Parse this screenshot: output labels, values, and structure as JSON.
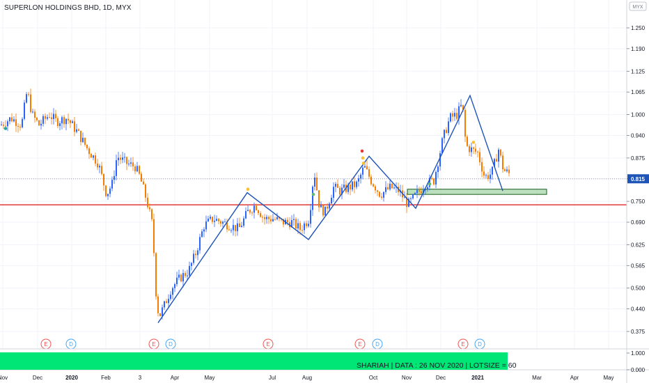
{
  "header": {
    "title": "SUPERLON HOLDINGS BHD, 1D, MYX"
  },
  "currency_label": "MYX",
  "price_badge": "0.815",
  "banner": {
    "text": "SHARIAH   |   DATA : 26 NOV 2020   |   LOTSIZE = 60"
  },
  "colors": {
    "up": "#2962ff",
    "down": "#f57c00",
    "support_line": "#e53935",
    "pattern_line": "#1e53b8",
    "zone_fill": "#a5d6a7",
    "banner": "#00e676",
    "earnings": "#ef5350",
    "dividend": "#42a5f5"
  },
  "chart_data": {
    "type": "candlestick",
    "title": "SUPERLON HOLDINGS BHD, 1D, MYX",
    "ylim": [
      0.35,
      1.3
    ],
    "y_ticks": [
      "1.250",
      "1.190",
      "1.125",
      "1.065",
      "1.000",
      "0.940",
      "0.875",
      "0.815",
      "0.750",
      "0.690",
      "0.625",
      "0.565",
      "0.500",
      "0.440",
      "0.375"
    ],
    "x_ticks": [
      "Nov",
      "Dec",
      "2020",
      "Feb",
      "3",
      "Apr",
      "May",
      "Jul",
      "Aug",
      "Oct",
      "Nov",
      "Dec",
      "2021",
      "Mar",
      "Apr",
      "May"
    ],
    "last_price": 0.815,
    "support_level": 0.74,
    "zone": {
      "low": 0.77,
      "high": 0.785,
      "from": "Nov",
      "to": "Mar"
    },
    "events": [
      {
        "type": "E",
        "label": "E",
        "x": "Dec"
      },
      {
        "type": "D",
        "label": "D",
        "x": "Dec"
      },
      {
        "type": "E",
        "label": "E",
        "x": "3"
      },
      {
        "type": "D",
        "label": "D",
        "x": "3"
      },
      {
        "type": "E",
        "label": "E",
        "x": "Jul"
      },
      {
        "type": "E",
        "label": "E",
        "x": "Oct"
      },
      {
        "type": "D",
        "label": "D",
        "x": "Oct"
      },
      {
        "type": "E",
        "label": "E",
        "x": "Dec"
      },
      {
        "type": "D",
        "label": "D",
        "x": "2021"
      }
    ],
    "pattern": [
      [
        227,
        0.4
      ],
      [
        355,
        0.775
      ],
      [
        443,
        0.64
      ],
      [
        530,
        0.88
      ],
      [
        597,
        0.73
      ],
      [
        675,
        1.055
      ],
      [
        722,
        0.78
      ]
    ],
    "ohlc_path": [
      [
        0,
        0.97
      ],
      [
        15,
        0.99
      ],
      [
        30,
        0.97
      ],
      [
        38,
        1.07
      ],
      [
        45,
        1.0
      ],
      [
        55,
        0.97
      ],
      [
        70,
        1.0
      ],
      [
        80,
        0.98
      ],
      [
        95,
        0.99
      ],
      [
        110,
        0.95
      ],
      [
        125,
        0.9
      ],
      [
        140,
        0.86
      ],
      [
        152,
        0.77
      ],
      [
        160,
        0.8
      ],
      [
        167,
        0.88
      ],
      [
        180,
        0.86
      ],
      [
        193,
        0.85
      ],
      [
        200,
        0.82
      ],
      [
        210,
        0.75
      ],
      [
        218,
        0.68
      ],
      [
        224,
        0.45
      ],
      [
        228,
        0.42
      ],
      [
        235,
        0.45
      ],
      [
        245,
        0.5
      ],
      [
        258,
        0.53
      ],
      [
        270,
        0.55
      ],
      [
        280,
        0.6
      ],
      [
        292,
        0.68
      ],
      [
        305,
        0.7
      ],
      [
        318,
        0.69
      ],
      [
        330,
        0.68
      ],
      [
        342,
        0.67
      ],
      [
        355,
        0.72
      ],
      [
        366,
        0.74
      ],
      [
        378,
        0.7
      ],
      [
        392,
        0.7
      ],
      [
        405,
        0.69
      ],
      [
        418,
        0.69
      ],
      [
        430,
        0.67
      ],
      [
        443,
        0.7
      ],
      [
        450,
        0.84
      ],
      [
        458,
        0.73
      ],
      [
        466,
        0.72
      ],
      [
        478,
        0.79
      ],
      [
        488,
        0.78
      ],
      [
        500,
        0.79
      ],
      [
        512,
        0.8
      ],
      [
        522,
        0.85
      ],
      [
        532,
        0.81
      ],
      [
        545,
        0.77
      ],
      [
        560,
        0.79
      ],
      [
        572,
        0.78
      ],
      [
        585,
        0.74
      ],
      [
        597,
        0.77
      ],
      [
        610,
        0.8
      ],
      [
        622,
        0.81
      ],
      [
        635,
        0.93
      ],
      [
        645,
        0.99
      ],
      [
        655,
        1.0
      ],
      [
        663,
        1.03
      ],
      [
        668,
        0.91
      ],
      [
        675,
        0.9
      ],
      [
        685,
        0.89
      ],
      [
        695,
        0.82
      ],
      [
        705,
        0.83
      ],
      [
        715,
        0.9
      ],
      [
        722,
        0.84
      ],
      [
        730,
        0.83
      ]
    ]
  }
}
